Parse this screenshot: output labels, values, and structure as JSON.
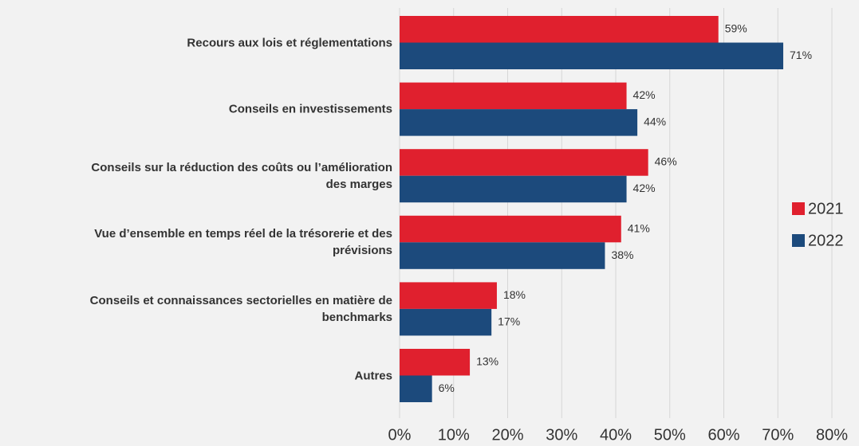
{
  "chart_data": {
    "type": "bar",
    "orientation": "horizontal",
    "categories": [
      "Recours aux lois et réglementations",
      "Conseils en investissements",
      "Conseils sur la réduction des coûts ou l’amélioration\ndes marges",
      "Vue d’ensemble en temps réel de la trésorerie et des\nprévisions",
      "Conseils et connaissances sectorielles en matière de\nbenchmarks",
      "Autres"
    ],
    "series": [
      {
        "name": "2021",
        "color": "#e0202e",
        "values": [
          59,
          42,
          46,
          41,
          18,
          13
        ],
        "value_labels": [
          "59%",
          "42%",
          "46%",
          "41%",
          "18%",
          "13%"
        ]
      },
      {
        "name": "2022",
        "color": "#1c4a7c",
        "values": [
          71,
          44,
          42,
          38,
          17,
          6
        ],
        "value_labels": [
          "71%",
          "44%",
          "42%",
          "38%",
          "17%",
          "6%"
        ]
      }
    ],
    "xlim": [
      0,
      80
    ],
    "xticks": [
      {
        "value": 0,
        "label": "0%"
      },
      {
        "value": 10,
        "label": "10%"
      },
      {
        "value": 20,
        "label": "20%"
      },
      {
        "value": 30,
        "label": "30%"
      },
      {
        "value": 40,
        "label": "40%"
      },
      {
        "value": 50,
        "label": "50%"
      },
      {
        "value": 60,
        "label": "60%"
      },
      {
        "value": 70,
        "label": "70%"
      },
      {
        "value": 80,
        "label": "80%"
      }
    ],
    "grid": true,
    "legend": "right"
  }
}
